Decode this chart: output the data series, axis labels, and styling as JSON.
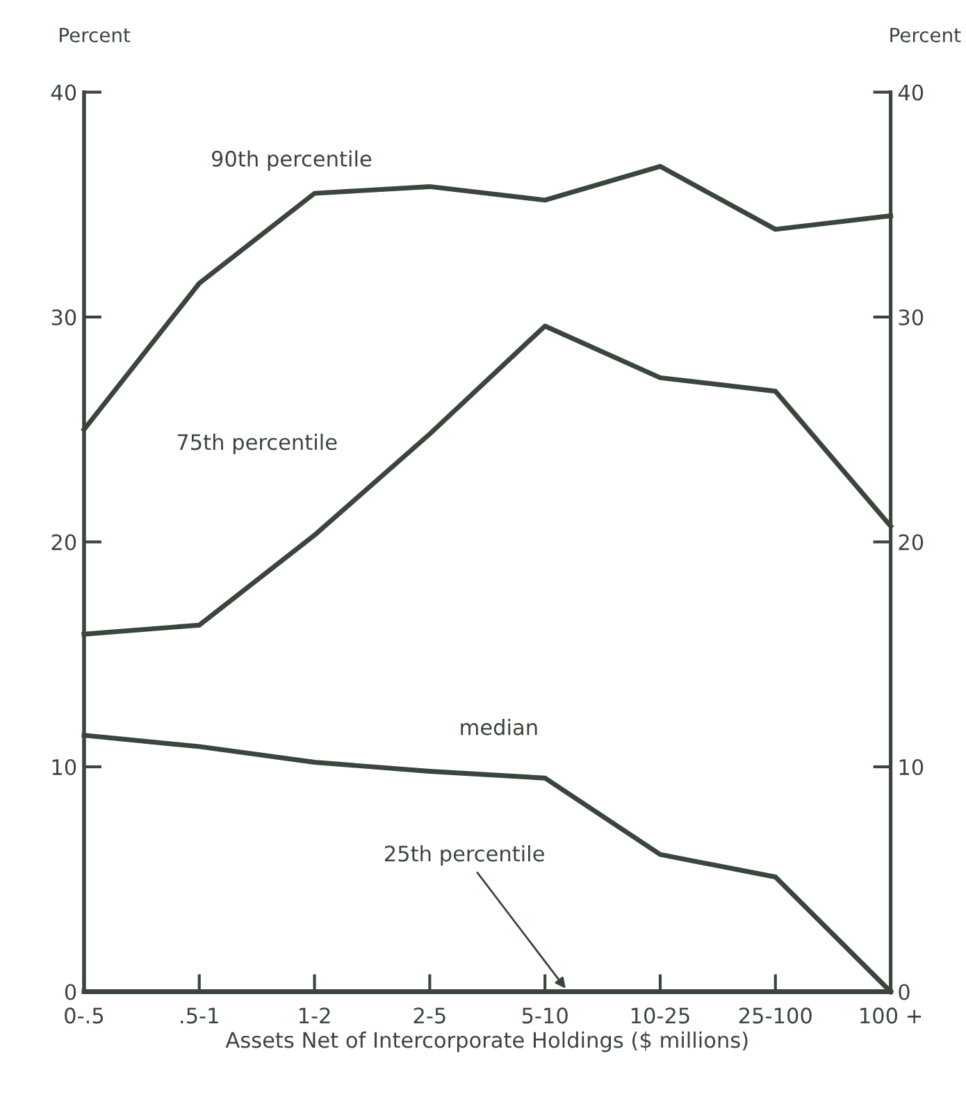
{
  "chart_data": {
    "type": "line",
    "xlabel": "Assets Net of Intercorporate Holdings ($ millions)",
    "ylabel": "Percent",
    "y2label": "Percent",
    "categories": [
      "0-.5",
      ".5-1",
      "1-2",
      "2-5",
      "5-10",
      "10-25",
      "25-100",
      "100 +"
    ],
    "series": [
      {
        "name": "90th percentile",
        "color": "#3a463c",
        "values": [
          25.0,
          31.5,
          35.5,
          35.8,
          35.2,
          36.7,
          33.9,
          34.5
        ]
      },
      {
        "name": "75th percentile",
        "color": "#3a463c",
        "values": [
          15.9,
          16.3,
          20.3,
          24.8,
          29.6,
          27.3,
          26.7,
          20.7
        ]
      },
      {
        "name": "median",
        "color": "#3a463c",
        "values": [
          11.4,
          10.9,
          10.2,
          9.8,
          9.5,
          6.1,
          5.1,
          0
        ]
      },
      {
        "name": "25th percentile",
        "color": "#3a463c",
        "values": [
          0,
          0,
          0,
          0,
          0,
          0,
          0,
          0
        ]
      }
    ],
    "ylim": [
      0,
      40
    ],
    "yticks": [
      0,
      10,
      20,
      30,
      40
    ],
    "y2lim": [
      0,
      40
    ],
    "y2ticks": [
      0,
      10,
      20,
      30,
      40
    ],
    "grid": false,
    "legend": false,
    "marker": "none",
    "line_style": "solid"
  }
}
